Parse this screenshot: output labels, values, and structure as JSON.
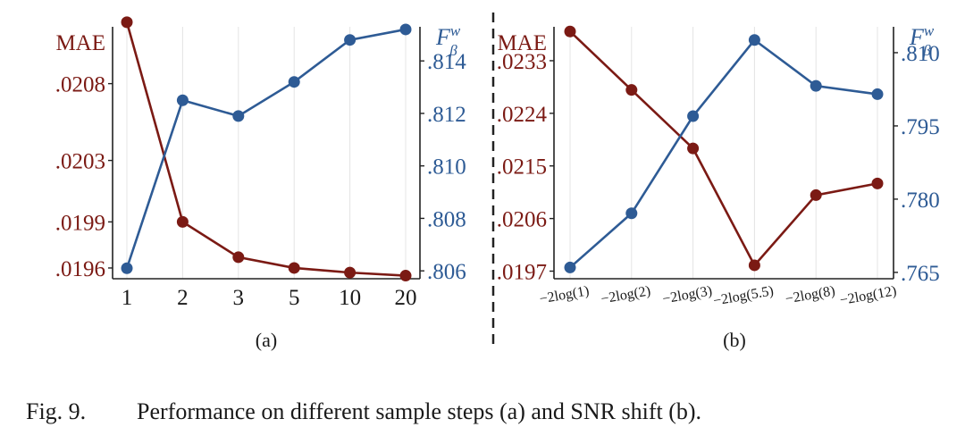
{
  "colors": {
    "mae": "#7b1a14",
    "fbw": "#2e5b95",
    "axis": "#222222",
    "grid": "#e4e4e4"
  },
  "chart_data": [
    {
      "type": "line",
      "sublabel": "(a)",
      "categories": [
        "1",
        "2",
        "3",
        "5",
        "10",
        "20"
      ],
      "left_axis": {
        "label": "MAE",
        "ticks": [
          ".0196",
          ".0199",
          ".0203",
          ".0208"
        ],
        "tick_values": [
          0.0196,
          0.0199,
          0.0203,
          0.0208
        ],
        "range": [
          0.01953,
          0.02117
        ]
      },
      "right_axis": {
        "label_base": "F",
        "label_sup": "w",
        "label_sub": "β",
        "ticks": [
          ".806",
          ".808",
          ".810",
          ".812",
          ".814"
        ],
        "tick_values": [
          0.806,
          0.808,
          0.81,
          0.812,
          0.814
        ],
        "range": [
          0.8057,
          0.8153
        ]
      },
      "series": [
        {
          "name": "MAE",
          "axis": "left",
          "values": [
            0.0212,
            0.0199,
            0.01967,
            0.0196,
            0.01957,
            0.01955
          ]
        },
        {
          "name": "Fβw",
          "axis": "right",
          "values": [
            0.8061,
            0.8125,
            0.8119,
            0.8132,
            0.8148,
            0.8152
          ]
        }
      ]
    },
    {
      "type": "line",
      "sublabel": "(b)",
      "categories": [
        "−2log(1)",
        "−2log(2)",
        "−2log(3)",
        "−2log(5.5)",
        "−2log(8)",
        "−2log(12)"
      ],
      "left_axis": {
        "label": "MAE",
        "ticks": [
          ".0197",
          ".0206",
          ".0215",
          ".0224",
          ".0233"
        ],
        "tick_values": [
          0.0197,
          0.0206,
          0.0215,
          0.0224,
          0.0233
        ],
        "range": [
          0.01957,
          0.02388
        ]
      },
      "right_axis": {
        "label_base": "F",
        "label_sup": "w",
        "label_sub": "β",
        "ticks": [
          ".765",
          ".780",
          ".795",
          ".810"
        ],
        "tick_values": [
          0.765,
          0.78,
          0.795,
          0.81
        ],
        "range": [
          0.7637,
          0.8153
        ]
      },
      "series": [
        {
          "name": "MAE",
          "axis": "left",
          "values": [
            0.0238,
            0.0228,
            0.0218,
            0.0198,
            0.021,
            0.0212
          ]
        },
        {
          "name": "Fβw",
          "axis": "right",
          "values": [
            0.766,
            0.7771,
            0.797,
            0.8126,
            0.8032,
            0.8015
          ]
        }
      ]
    }
  ],
  "caption": {
    "number": "Fig. 9.",
    "text": "Performance on different sample steps (a) and SNR shift (b)."
  }
}
